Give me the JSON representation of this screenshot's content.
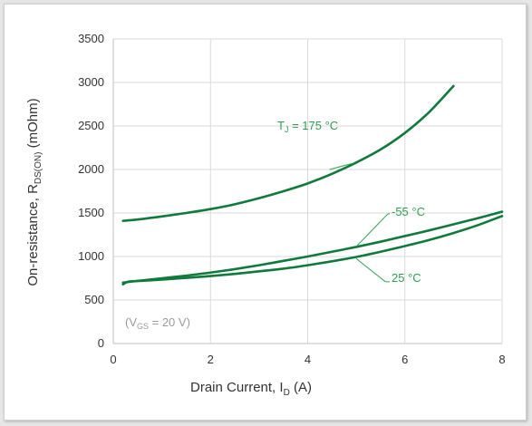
{
  "chart_data": {
    "type": "line",
    "xlabel": "Drain Current, I",
    "xlabel_sub": "D",
    "xlabel_suffix": " (A)",
    "ylabel": "On-resistance, R",
    "ylabel_sub": "DS(ON)",
    "ylabel_suffix": " (mOhm)",
    "xlim": [
      0,
      8
    ],
    "ylim": [
      0,
      3500
    ],
    "x_ticks": [
      "0",
      "2",
      "4",
      "6",
      "8"
    ],
    "y_ticks": [
      "0",
      "500",
      "1000",
      "1500",
      "2000",
      "2500",
      "3000",
      "3500"
    ],
    "grid": true,
    "line_color": "#107a3c",
    "annotation_color": "#2f9e4f",
    "condition": {
      "prefix": "(V",
      "sub": "GS",
      "suffix": " = 20 V)"
    },
    "series": [
      {
        "label_prefix": "T",
        "label_sub": "J",
        "label_suffix": " = 175 °C",
        "x": [
          0.2,
          0.5,
          1,
          1.5,
          2,
          2.5,
          3,
          3.5,
          4,
          4.5,
          5,
          5.5,
          6,
          6.5,
          7
        ],
        "y": [
          1410,
          1425,
          1460,
          1500,
          1545,
          1600,
          1670,
          1750,
          1840,
          1950,
          2080,
          2230,
          2420,
          2660,
          2960
        ]
      },
      {
        "label": "-55 °C",
        "x": [
          0.2,
          0.5,
          1,
          1.5,
          2,
          2.5,
          3,
          3.5,
          4,
          4.5,
          5,
          5.5,
          6,
          6.5,
          7,
          7.5,
          8
        ],
        "y": [
          700,
          720,
          750,
          780,
          815,
          855,
          900,
          950,
          1000,
          1055,
          1110,
          1170,
          1235,
          1300,
          1370,
          1440,
          1515
        ]
      },
      {
        "label": "25 °C",
        "x": [
          0.2,
          0.3,
          0.5,
          1,
          1.5,
          2,
          2.5,
          3,
          3.5,
          4,
          4.5,
          5,
          5.5,
          6,
          6.5,
          7,
          7.5,
          8
        ],
        "y": [
          680,
          710,
          718,
          735,
          755,
          775,
          800,
          830,
          860,
          900,
          945,
          995,
          1055,
          1120,
          1190,
          1270,
          1360,
          1465
        ]
      }
    ]
  }
}
